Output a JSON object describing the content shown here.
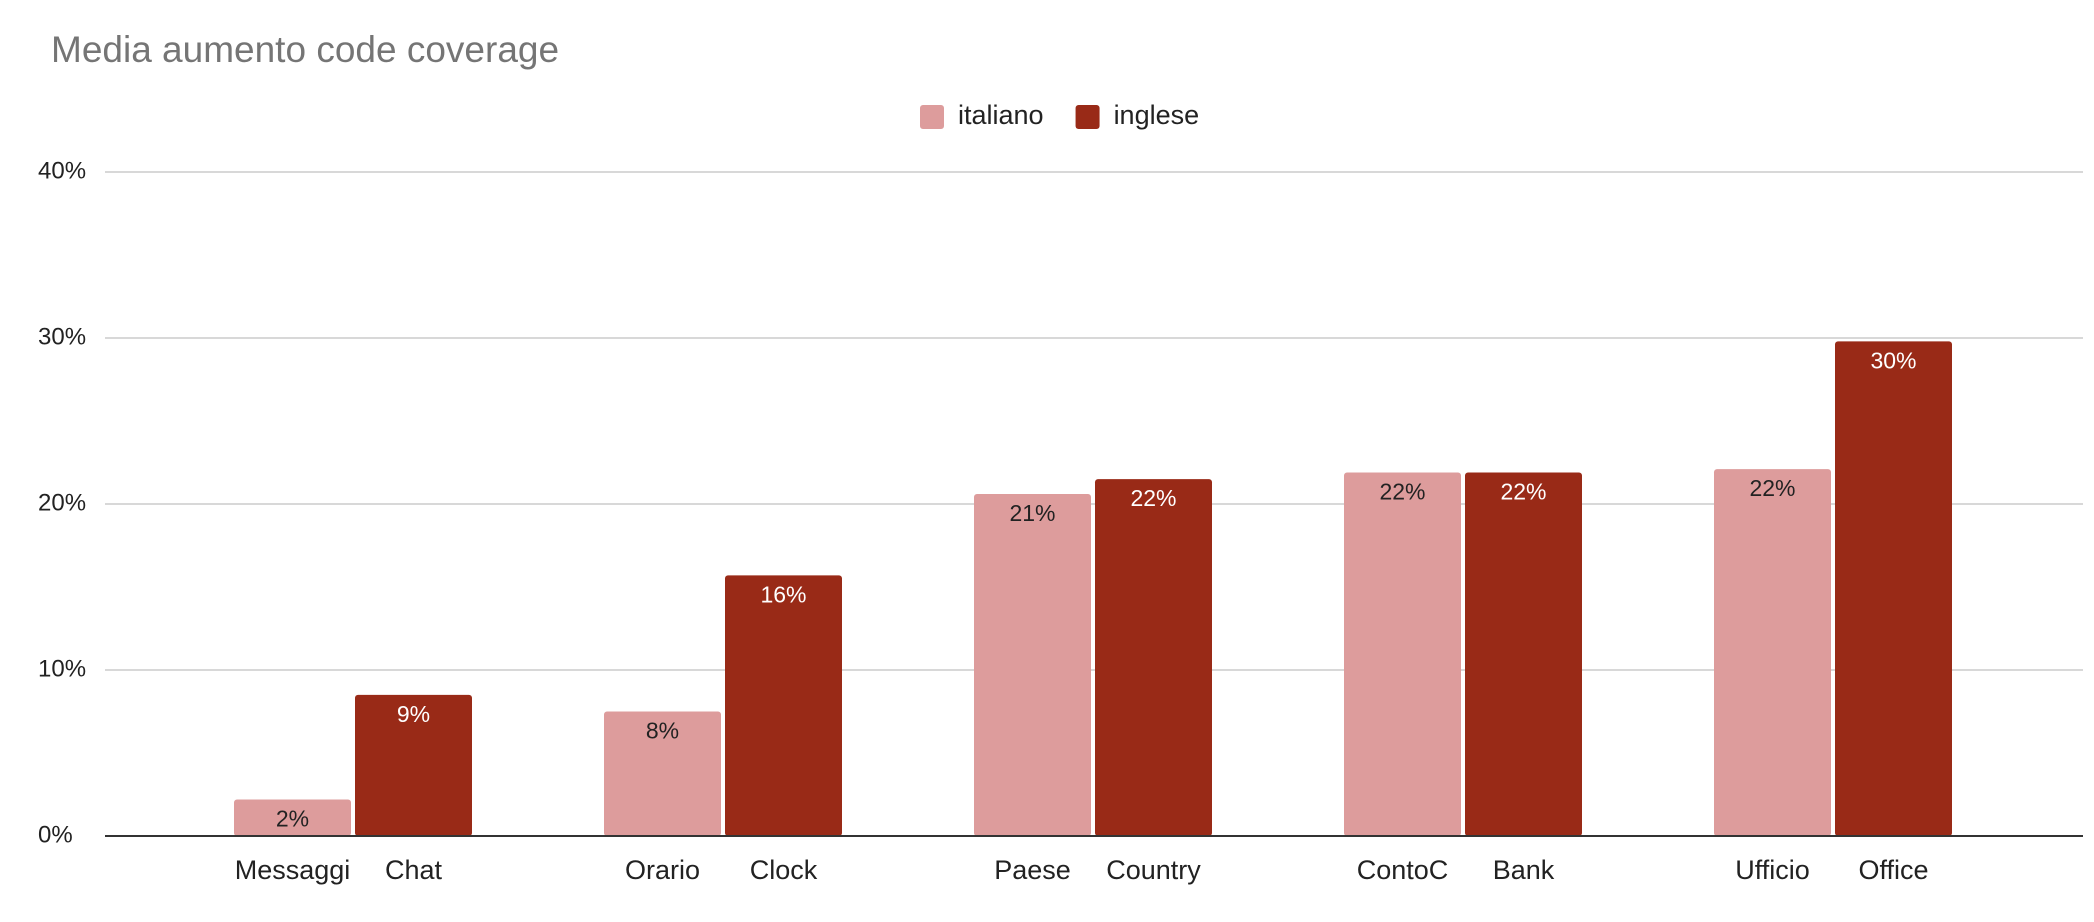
{
  "chart_data": {
    "type": "bar",
    "title": "Media aumento code coverage",
    "series": [
      {
        "name": "italiano",
        "color": "#dd9c9c",
        "label_color": "#222222",
        "categories": [
          "Messaggi",
          "Orario",
          "Paese",
          "ContoC",
          "Ufficio"
        ],
        "values": [
          2.2,
          7.5,
          20.6,
          21.9,
          22.1
        ],
        "value_labels": [
          "2%",
          "8%",
          "21%",
          "22%",
          "22%"
        ]
      },
      {
        "name": "inglese",
        "color": "#992a17",
        "label_color": "#ffffff",
        "categories": [
          "Chat",
          "Clock",
          "Country",
          "Bank",
          "Office"
        ],
        "values": [
          8.5,
          15.7,
          21.5,
          21.9,
          29.8
        ],
        "value_labels": [
          "9%",
          "16%",
          "22%",
          "22%",
          "30%"
        ]
      }
    ],
    "ylim": [
      0,
      40
    ],
    "yticks": [
      {
        "value": 0,
        "label": "0%"
      },
      {
        "value": 10,
        "label": "10%"
      },
      {
        "value": 20,
        "label": "20%"
      },
      {
        "value": 30,
        "label": "30%"
      },
      {
        "value": 40,
        "label": "40%"
      }
    ],
    "grid": true,
    "legend": "top"
  }
}
